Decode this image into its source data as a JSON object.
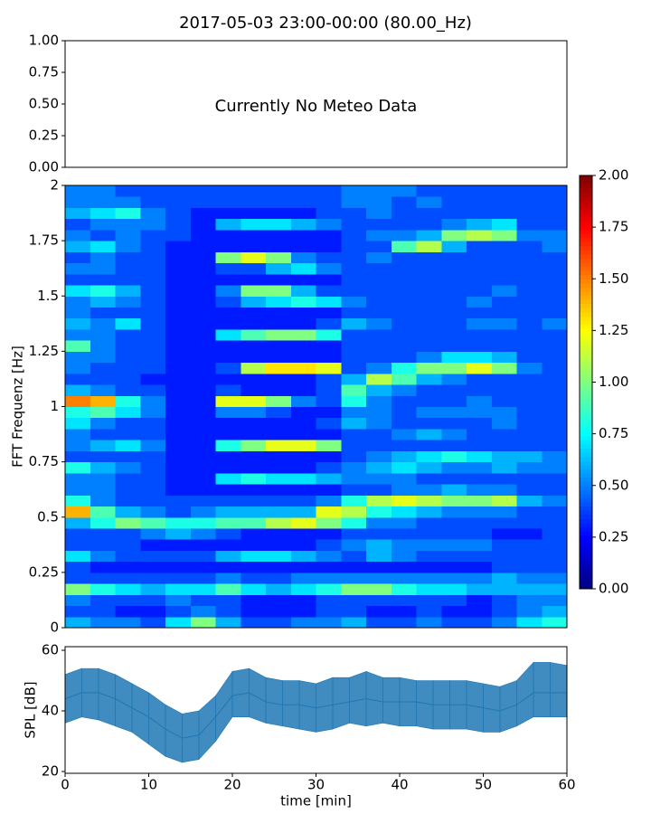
{
  "chart_data": [
    {
      "type": "line",
      "title": "2017-05-03 23:00-00:00 (80.00_Hz)",
      "annotation": "Currently No Meteo Data",
      "xlim": [
        0,
        60
      ],
      "ylim": [
        0,
        1
      ],
      "yticks": [
        {
          "value": 0,
          "label": "0.00"
        },
        {
          "value": 0.25,
          "label": "0.25"
        },
        {
          "value": 0.5,
          "label": "0.50"
        },
        {
          "value": 0.75,
          "label": "0.75"
        },
        {
          "value": 1,
          "label": "1.00"
        }
      ]
    },
    {
      "type": "heatmap",
      "ylabel": "FFT Frequenz [Hz]",
      "colormap": "jet",
      "xlim": [
        0,
        60
      ],
      "ylim": [
        0,
        2
      ],
      "yticks": [
        0,
        0.25,
        0.5,
        0.75,
        1,
        1.25,
        1.5,
        1.75,
        2
      ],
      "colorbar": {
        "lim": [
          0,
          2
        ],
        "ticks": [
          {
            "value": 0,
            "label": "0.00"
          },
          {
            "value": 0.25,
            "label": "0.25"
          },
          {
            "value": 0.5,
            "label": "0.50"
          },
          {
            "value": 0.75,
            "label": "0.75"
          },
          {
            "value": 1,
            "label": "1.00"
          },
          {
            "value": 1.25,
            "label": "1.25"
          },
          {
            "value": 1.5,
            "label": "1.50"
          },
          {
            "value": 1.75,
            "label": "1.75"
          },
          {
            "value": 2,
            "label": "2.00"
          }
        ]
      },
      "values": [
        [
          0.6,
          0.5,
          0.5,
          0.4,
          0.7,
          1.0,
          0.6,
          0.4,
          0.4,
          0.5,
          0.5,
          0.6,
          0.4,
          0.4,
          0.5,
          0.4,
          0.4,
          0.5,
          0.7,
          0.8
        ],
        [
          0.4,
          0.4,
          0.3,
          0.3,
          0.4,
          0.5,
          0.4,
          0.3,
          0.3,
          0.3,
          0.4,
          0.4,
          0.3,
          0.3,
          0.4,
          0.3,
          0.3,
          0.4,
          0.5,
          0.6
        ],
        [
          0.5,
          0.4,
          0.4,
          0.4,
          0.5,
          0.4,
          0.4,
          0.3,
          0.3,
          0.3,
          0.4,
          0.4,
          0.4,
          0.4,
          0.4,
          0.4,
          0.3,
          0.4,
          0.5,
          0.5
        ],
        [
          1.0,
          0.8,
          0.7,
          0.6,
          0.7,
          0.7,
          0.9,
          0.7,
          0.6,
          0.7,
          0.8,
          1.0,
          1.0,
          0.8,
          0.7,
          0.7,
          0.6,
          0.6,
          0.6,
          0.6
        ],
        [
          0.4,
          0.4,
          0.4,
          0.4,
          0.4,
          0.4,
          0.5,
          0.4,
          0.4,
          0.5,
          0.5,
          0.5,
          0.5,
          0.5,
          0.5,
          0.5,
          0.5,
          0.6,
          0.5,
          0.5
        ],
        [
          0.4,
          0.3,
          0.3,
          0.3,
          0.3,
          0.3,
          0.3,
          0.3,
          0.3,
          0.3,
          0.3,
          0.3,
          0.3,
          0.3,
          0.3,
          0.3,
          0.3,
          0.4,
          0.4,
          0.4
        ],
        [
          0.7,
          0.5,
          0.4,
          0.4,
          0.4,
          0.4,
          0.6,
          0.7,
          0.7,
          0.6,
          0.5,
          0.4,
          0.6,
          0.5,
          0.4,
          0.4,
          0.4,
          0.4,
          0.4,
          0.4
        ],
        [
          0.4,
          0.4,
          0.4,
          0.3,
          0.3,
          0.3,
          0.3,
          0.3,
          0.3,
          0.3,
          0.4,
          0.5,
          0.6,
          0.5,
          0.5,
          0.5,
          0.5,
          0.4,
          0.4,
          0.4
        ],
        [
          0.4,
          0.4,
          0.4,
          0.5,
          0.6,
          0.5,
          0.4,
          0.3,
          0.3,
          0.3,
          0.3,
          0.4,
          0.4,
          0.4,
          0.4,
          0.4,
          0.4,
          0.3,
          0.3,
          0.4
        ],
        [
          0.6,
          0.8,
          1.0,
          0.9,
          0.8,
          0.8,
          0.9,
          0.9,
          1.1,
          1.2,
          1.0,
          0.8,
          0.5,
          0.5,
          0.4,
          0.4,
          0.4,
          0.4,
          0.4,
          0.4
        ],
        [
          1.4,
          0.9,
          0.6,
          0.5,
          0.4,
          0.5,
          0.6,
          0.6,
          0.6,
          0.6,
          1.2,
          1.1,
          0.8,
          0.7,
          0.6,
          0.5,
          0.5,
          0.5,
          0.4,
          0.4
        ],
        [
          0.8,
          0.5,
          0.4,
          0.4,
          0.4,
          0.4,
          0.4,
          0.4,
          0.4,
          0.4,
          0.5,
          0.8,
          1.1,
          1.2,
          1.1,
          1.0,
          1.0,
          1.1,
          0.6,
          0.5
        ],
        [
          0.5,
          0.5,
          0.4,
          0.4,
          0.3,
          0.3,
          0.3,
          0.3,
          0.3,
          0.3,
          0.3,
          0.4,
          0.4,
          0.5,
          0.5,
          0.6,
          0.5,
          0.5,
          0.4,
          0.4
        ],
        [
          0.5,
          0.5,
          0.4,
          0.4,
          0.3,
          0.3,
          0.7,
          0.8,
          0.7,
          0.7,
          0.6,
          0.5,
          0.5,
          0.5,
          0.4,
          0.4,
          0.4,
          0.4,
          0.4,
          0.4
        ],
        [
          0.8,
          0.6,
          0.5,
          0.4,
          0.3,
          0.3,
          0.3,
          0.3,
          0.3,
          0.3,
          0.4,
          0.5,
          0.6,
          0.7,
          0.6,
          0.5,
          0.5,
          0.6,
          0.5,
          0.5
        ],
        [
          0.4,
          0.4,
          0.4,
          0.4,
          0.3,
          0.3,
          0.3,
          0.3,
          0.3,
          0.3,
          0.3,
          0.4,
          0.5,
          0.6,
          0.7,
          0.8,
          0.7,
          0.6,
          0.6,
          0.5
        ],
        [
          0.5,
          0.6,
          0.7,
          0.5,
          0.3,
          0.3,
          0.8,
          1.0,
          1.2,
          1.2,
          1.0,
          0.4,
          0.4,
          0.4,
          0.4,
          0.4,
          0.4,
          0.4,
          0.4,
          0.4
        ],
        [
          0.5,
          0.4,
          0.4,
          0.4,
          0.3,
          0.3,
          0.3,
          0.3,
          0.3,
          0.3,
          0.3,
          0.4,
          0.4,
          0.5,
          0.6,
          0.5,
          0.4,
          0.4,
          0.4,
          0.4
        ],
        [
          0.7,
          0.5,
          0.4,
          0.4,
          0.3,
          0.3,
          0.3,
          0.3,
          0.3,
          0.3,
          0.4,
          0.6,
          0.5,
          0.4,
          0.4,
          0.4,
          0.4,
          0.5,
          0.4,
          0.4
        ],
        [
          0.8,
          0.9,
          0.7,
          0.5,
          0.3,
          0.3,
          0.5,
          0.5,
          0.4,
          0.3,
          0.3,
          0.5,
          0.5,
          0.4,
          0.5,
          0.5,
          0.5,
          0.5,
          0.4,
          0.4
        ],
        [
          1.5,
          1.4,
          0.8,
          0.5,
          0.3,
          0.3,
          1.2,
          1.2,
          1.0,
          0.5,
          0.4,
          0.8,
          0.5,
          0.4,
          0.4,
          0.4,
          0.5,
          0.4,
          0.4,
          0.4
        ],
        [
          0.6,
          0.5,
          0.4,
          0.4,
          0.3,
          0.3,
          0.4,
          0.3,
          0.3,
          0.3,
          0.4,
          0.9,
          0.6,
          0.5,
          0.4,
          0.4,
          0.4,
          0.4,
          0.4,
          0.4
        ],
        [
          0.4,
          0.4,
          0.4,
          0.3,
          0.3,
          0.3,
          0.3,
          0.3,
          0.3,
          0.3,
          0.4,
          0.6,
          1.1,
          0.9,
          0.6,
          0.5,
          0.4,
          0.4,
          0.4,
          0.4
        ],
        [
          0.5,
          0.4,
          0.4,
          0.4,
          0.3,
          0.3,
          0.4,
          1.1,
          1.3,
          1.3,
          1.2,
          0.4,
          0.5,
          0.8,
          1.0,
          1.0,
          1.2,
          1.0,
          0.5,
          0.4
        ],
        [
          0.5,
          0.5,
          0.4,
          0.4,
          0.3,
          0.3,
          0.3,
          0.3,
          0.3,
          0.3,
          0.3,
          0.4,
          0.4,
          0.4,
          0.5,
          0.7,
          0.7,
          0.6,
          0.4,
          0.4
        ],
        [
          0.9,
          0.5,
          0.4,
          0.4,
          0.3,
          0.3,
          0.3,
          0.3,
          0.3,
          0.3,
          0.3,
          0.4,
          0.4,
          0.4,
          0.4,
          0.4,
          0.4,
          0.4,
          0.4,
          0.4
        ],
        [
          0.5,
          0.5,
          0.4,
          0.4,
          0.3,
          0.3,
          0.7,
          0.9,
          1.0,
          1.0,
          0.8,
          0.4,
          0.4,
          0.4,
          0.4,
          0.4,
          0.4,
          0.4,
          0.4,
          0.4
        ],
        [
          0.6,
          0.5,
          0.7,
          0.4,
          0.3,
          0.3,
          0.3,
          0.3,
          0.3,
          0.3,
          0.4,
          0.6,
          0.5,
          0.4,
          0.4,
          0.4,
          0.5,
          0.5,
          0.4,
          0.5
        ],
        [
          0.5,
          0.4,
          0.4,
          0.4,
          0.3,
          0.3,
          0.3,
          0.3,
          0.3,
          0.3,
          0.3,
          0.4,
          0.4,
          0.4,
          0.4,
          0.4,
          0.4,
          0.4,
          0.4,
          0.4
        ],
        [
          0.5,
          0.6,
          0.5,
          0.4,
          0.3,
          0.3,
          0.4,
          0.6,
          0.7,
          0.8,
          0.7,
          0.5,
          0.4,
          0.4,
          0.4,
          0.4,
          0.5,
          0.4,
          0.4,
          0.4
        ],
        [
          0.7,
          0.8,
          0.6,
          0.4,
          0.3,
          0.3,
          0.5,
          1.0,
          1.0,
          0.6,
          0.4,
          0.4,
          0.4,
          0.4,
          0.4,
          0.4,
          0.4,
          0.5,
          0.4,
          0.4
        ],
        [
          0.4,
          0.4,
          0.4,
          0.4,
          0.3,
          0.3,
          0.3,
          0.3,
          0.3,
          0.3,
          0.3,
          0.4,
          0.4,
          0.4,
          0.4,
          0.4,
          0.4,
          0.4,
          0.4,
          0.4
        ],
        [
          0.5,
          0.5,
          0.4,
          0.4,
          0.3,
          0.3,
          0.4,
          0.4,
          0.6,
          0.7,
          0.5,
          0.4,
          0.4,
          0.4,
          0.4,
          0.4,
          0.4,
          0.4,
          0.4,
          0.4
        ],
        [
          0.4,
          0.5,
          0.4,
          0.4,
          0.3,
          0.3,
          1.0,
          1.2,
          1.0,
          0.5,
          0.4,
          0.4,
          0.5,
          0.4,
          0.4,
          0.4,
          0.4,
          0.4,
          0.4,
          0.4
        ],
        [
          0.6,
          0.7,
          0.5,
          0.4,
          0.3,
          0.3,
          0.3,
          0.3,
          0.3,
          0.3,
          0.3,
          0.4,
          0.4,
          0.9,
          1.1,
          0.6,
          0.4,
          0.4,
          0.4,
          0.5
        ],
        [
          0.5,
          0.4,
          0.5,
          0.4,
          0.4,
          0.3,
          0.3,
          0.3,
          0.3,
          0.3,
          0.3,
          0.4,
          0.5,
          0.5,
          0.6,
          1.0,
          1.1,
          1.0,
          0.5,
          0.5
        ],
        [
          0.4,
          0.5,
          0.5,
          0.5,
          0.4,
          0.3,
          0.6,
          0.7,
          0.7,
          0.6,
          0.5,
          0.4,
          0.4,
          0.4,
          0.4,
          0.5,
          0.6,
          0.7,
          0.4,
          0.4
        ],
        [
          0.6,
          0.7,
          0.8,
          0.5,
          0.4,
          0.3,
          0.3,
          0.3,
          0.3,
          0.3,
          0.4,
          0.4,
          0.5,
          0.4,
          0.4,
          0.4,
          0.4,
          0.4,
          0.4,
          0.4
        ],
        [
          0.5,
          0.5,
          0.5,
          0.4,
          0.4,
          0.4,
          0.4,
          0.4,
          0.4,
          0.4,
          0.4,
          0.5,
          0.5,
          0.4,
          0.5,
          0.4,
          0.4,
          0.4,
          0.4,
          0.4
        ],
        [
          0.5,
          0.5,
          0.4,
          0.4,
          0.4,
          0.4,
          0.4,
          0.4,
          0.4,
          0.4,
          0.4,
          0.5,
          0.5,
          0.5,
          0.4,
          0.4,
          0.4,
          0.4,
          0.4,
          0.4
        ]
      ]
    },
    {
      "type": "line",
      "xlabel": "time [min]",
      "ylabel": "SPL [dB]",
      "xlim": [
        0,
        60
      ],
      "ylim": [
        19.4,
        61.2
      ],
      "xticks": [
        0,
        10,
        20,
        30,
        40,
        50,
        60
      ],
      "yticks": [
        20,
        40,
        60
      ],
      "x": [
        0,
        2,
        4,
        6,
        8,
        10,
        12,
        14,
        16,
        18,
        20,
        22,
        24,
        26,
        28,
        30,
        32,
        34,
        36,
        38,
        40,
        42,
        44,
        46,
        48,
        50,
        52,
        54,
        56,
        58,
        60
      ],
      "series": [
        {
          "color": "#1f77b4",
          "values": [
            44,
            46,
            46,
            44,
            41,
            38,
            34,
            31,
            32,
            38,
            45,
            46,
            43,
            42,
            42,
            41,
            42,
            43,
            44,
            43,
            43,
            43,
            42,
            42,
            42,
            41,
            40,
            42,
            46,
            46,
            46
          ],
          "upper": [
            52,
            54,
            54,
            52,
            49,
            46,
            42,
            39,
            40,
            45,
            53,
            54,
            51,
            50,
            50,
            49,
            51,
            51,
            53,
            51,
            51,
            50,
            50,
            50,
            50,
            49,
            48,
            50,
            56,
            56,
            55
          ],
          "lower": [
            36,
            38,
            37,
            35,
            33,
            29,
            25,
            23,
            24,
            30,
            38,
            38,
            36,
            35,
            34,
            33,
            34,
            36,
            35,
            36,
            35,
            35,
            34,
            34,
            34,
            33,
            33,
            35,
            38,
            38,
            38
          ]
        }
      ]
    }
  ]
}
